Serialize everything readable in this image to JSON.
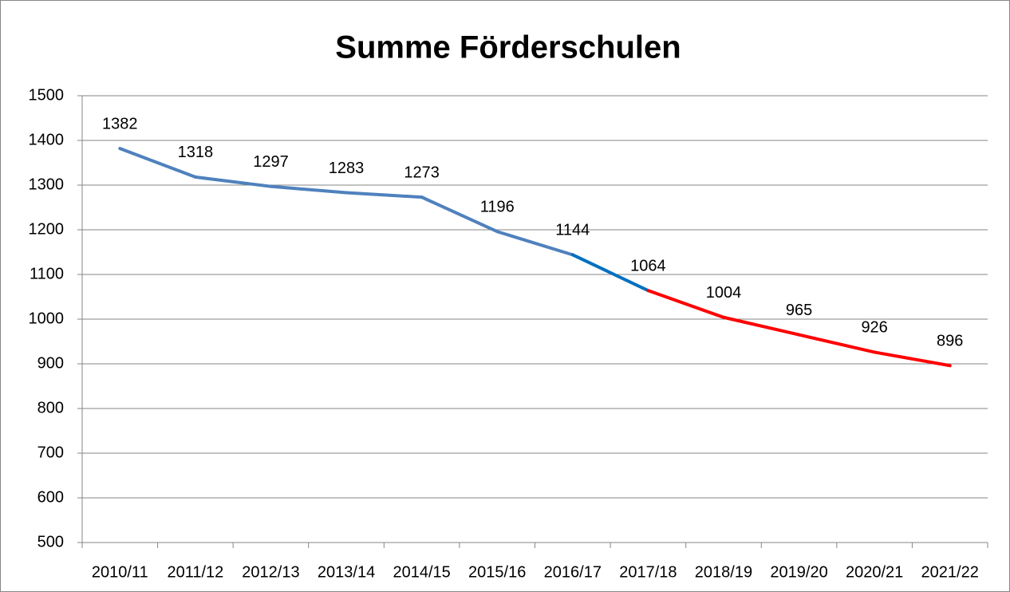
{
  "chart_data": {
    "type": "line",
    "title": "Summe Förderschulen",
    "categories": [
      "2010/11",
      "2011/12",
      "2012/13",
      "2013/14",
      "2014/15",
      "2015/16",
      "2016/17",
      "2017/18",
      "2018/19",
      "2019/20",
      "2020/21",
      "2021/22"
    ],
    "series": [
      {
        "values": [
          1382,
          1318,
          1297,
          1283,
          1273,
          1196,
          1144,
          1064,
          1004,
          965,
          926,
          896
        ],
        "segment_colors": [
          "#4f81bd",
          "#4f81bd",
          "#4f81bd",
          "#4f81bd",
          "#4f81bd",
          "#4f81bd",
          "#0070c0",
          "#ff0000",
          "#ff0000",
          "#ff0000",
          "#ff0000"
        ]
      }
    ],
    "ylim": [
      500,
      1500
    ],
    "yticks": [
      500,
      600,
      700,
      800,
      900,
      1000,
      1100,
      1200,
      1300,
      1400,
      1500
    ],
    "grid": true
  }
}
